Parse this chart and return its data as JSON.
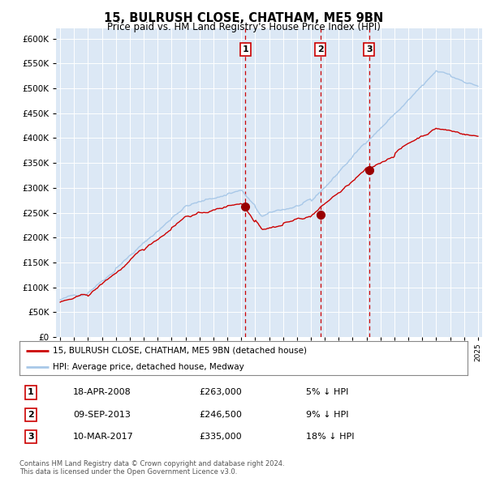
{
  "title": "15, BULRUSH CLOSE, CHATHAM, ME5 9BN",
  "subtitle": "Price paid vs. HM Land Registry's House Price Index (HPI)",
  "hpi_color": "#a8c8e8",
  "price_color": "#cc0000",
  "marker_color": "#990000",
  "plot_bg_color": "#dce8f5",
  "grid_color": "#ffffff",
  "legend_label_price": "15, BULRUSH CLOSE, CHATHAM, ME5 9BN (detached house)",
  "legend_label_hpi": "HPI: Average price, detached house, Medway",
  "footer": "Contains HM Land Registry data © Crown copyright and database right 2024.\nThis data is licensed under the Open Government Licence v3.0.",
  "transactions": [
    {
      "num": 1,
      "date": "18-APR-2008",
      "price": 263000,
      "pct": "5%",
      "x_year": 2008.29
    },
    {
      "num": 2,
      "date": "09-SEP-2013",
      "price": 246500,
      "pct": "9%",
      "x_year": 2013.69
    },
    {
      "num": 3,
      "date": "10-MAR-2017",
      "price": 335000,
      "pct": "18%",
      "x_year": 2017.19
    }
  ],
  "vline_color": "#cc0000",
  "ylim": [
    0,
    620000
  ],
  "ytick_values": [
    0,
    50000,
    100000,
    150000,
    200000,
    250000,
    300000,
    350000,
    400000,
    450000,
    500000,
    550000,
    600000
  ],
  "xlim_start": 1994.7,
  "xlim_end": 2025.3
}
